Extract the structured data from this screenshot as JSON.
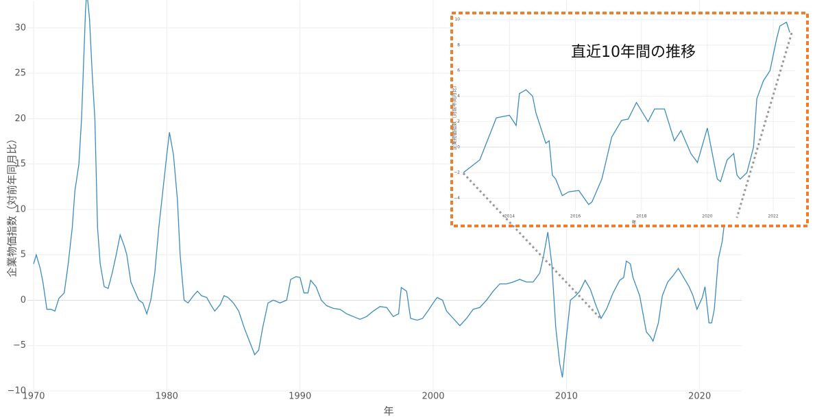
{
  "chart_data": [
    {
      "type": "line",
      "x_label": "年",
      "y_label": "企業物価指数（対前年同月比）",
      "color": "#3b8bbd",
      "grid": true,
      "xlim": [
        1970,
        2023
      ],
      "ylim": [
        -10,
        33
      ],
      "xticks": [
        1970,
        1980,
        1990,
        2000,
        2010,
        2020
      ],
      "yticks": [
        {
          "value": -10,
          "label": "−10"
        },
        {
          "value": -5,
          "label": "−5"
        },
        0,
        5,
        10,
        15,
        20,
        25,
        30
      ],
      "x": [
        1970.0,
        1970.2,
        1970.5,
        1970.7,
        1971.0,
        1971.3,
        1971.6,
        1971.9,
        1972.3,
        1972.6,
        1972.9,
        1973.1,
        1973.4,
        1973.6,
        1973.9,
        1974.0,
        1974.2,
        1974.4,
        1974.6,
        1974.8,
        1975.0,
        1975.3,
        1975.6,
        1975.9,
        1976.2,
        1976.5,
        1976.8,
        1977.0,
        1977.3,
        1977.6,
        1977.9,
        1978.2,
        1978.5,
        1978.8,
        1979.1,
        1979.4,
        1979.7,
        1980.0,
        1980.2,
        1980.5,
        1980.8,
        1981.0,
        1981.3,
        1981.6,
        1982.0,
        1982.3,
        1982.6,
        1983.0,
        1983.3,
        1983.6,
        1984.0,
        1984.3,
        1984.6,
        1985.0,
        1985.4,
        1985.8,
        1986.2,
        1986.6,
        1986.9,
        1987.2,
        1987.6,
        1988.0,
        1988.5,
        1989.0,
        1989.3,
        1989.7,
        1990.0,
        1990.3,
        1990.6,
        1990.8,
        1991.2,
        1991.6,
        1992.0,
        1992.5,
        1993.0,
        1993.5,
        1994.0,
        1994.5,
        1995.0,
        1995.5,
        1996.0,
        1996.5,
        1997.0,
        1997.4,
        1997.6,
        1998.0,
        1998.3,
        1998.8,
        1999.2,
        1999.6,
        2000.0,
        2000.3,
        2000.7,
        2001.0,
        2001.5,
        2002.0,
        2002.5,
        2003.0,
        2003.5,
        2004.0,
        2004.5,
        2005.0,
        2005.5,
        2006.0,
        2006.5,
        2007.0,
        2007.5,
        2008.0,
        2008.3,
        2008.6,
        2008.9,
        2009.2,
        2009.5,
        2009.7,
        2010.0,
        2010.3,
        2010.7,
        2011.0,
        2011.4,
        2011.8,
        2012.2,
        2012.6,
        2013.0,
        2013.5,
        2014.0,
        2014.3,
        2014.5,
        2014.8,
        2015.0,
        2015.5,
        2016.0,
        2016.3,
        2016.5,
        2016.9,
        2017.2,
        2017.6,
        2018.0,
        2018.4,
        2018.8,
        2019.2,
        2019.5,
        2019.8,
        2020.2,
        2020.4,
        2020.7,
        2020.9,
        2021.1,
        2021.4,
        2021.7,
        2021.9,
        2022.2,
        2022.5
      ],
      "values": [
        4.0,
        5.0,
        3.5,
        2.0,
        -1.0,
        -1.0,
        -1.2,
        0.2,
        0.8,
        4,
        8,
        12,
        15,
        20,
        32,
        34,
        31,
        25,
        20,
        8,
        4,
        1.5,
        1.3,
        3,
        5,
        7.2,
        6,
        5,
        2,
        1,
        0,
        -0.3,
        -1.5,
        0,
        3,
        8,
        12,
        16,
        18.5,
        16,
        11,
        5,
        0,
        -0.3,
        0.5,
        1,
        0.5,
        0.3,
        -0.5,
        -1.2,
        -0.5,
        0.5,
        0.3,
        -0.3,
        -1.2,
        -3,
        -4.5,
        -6,
        -5.5,
        -3,
        -0.3,
        0,
        -0.3,
        0,
        2.3,
        2.6,
        2.5,
        0.8,
        0.8,
        2.2,
        1.5,
        0,
        -0.6,
        -0.9,
        -1.0,
        -1.5,
        -1.8,
        -2.1,
        -1.8,
        -1.2,
        -0.7,
        -0.8,
        -1.8,
        -1.5,
        1.4,
        1.0,
        -2.0,
        -2.2,
        -2.0,
        -1.2,
        -0.3,
        0.3,
        0,
        -1.2,
        -2.0,
        -2.8,
        -2.0,
        -1.0,
        -0.8,
        0,
        1.0,
        1.8,
        1.8,
        2.0,
        2.3,
        2.0,
        2.0,
        3.0,
        5,
        7.5,
        4,
        -3,
        -7,
        -8.5,
        -4,
        0,
        0.5,
        1.0,
        2.2,
        1.2,
        -0.5,
        -2.0,
        -1.0,
        0.8,
        2.2,
        2.5,
        4.3,
        4.0,
        2.5,
        0.5,
        -3.5,
        -4.0,
        -4.5,
        -2.5,
        0.5,
        2.0,
        2.7,
        3.5,
        2.5,
        1.5,
        0.5,
        -1.0,
        0.3,
        1.5,
        -2.5,
        -2.5,
        -1,
        4.5,
        6.5,
        9.0,
        9.5,
        9.0
      ]
    },
    {
      "type": "line",
      "title": "直近10年間の推移",
      "x_label": "年",
      "y_label": "企業物価指数（対前年同月比）",
      "color": "#3b8bbd",
      "grid": true,
      "xlim": [
        2012.6,
        2022.6
      ],
      "ylim": [
        -5,
        10.2
      ],
      "xticks": [
        2014,
        2016,
        2018,
        2020,
        2022
      ],
      "yticks": [
        {
          "value": -4,
          "label": "−4"
        },
        {
          "value": -2,
          "label": "−2"
        },
        0,
        2,
        4,
        6,
        8,
        10
      ],
      "x": [
        2012.6,
        2013.1,
        2013.6,
        2014.0,
        2014.2,
        2014.3,
        2014.5,
        2014.7,
        2014.8,
        2015.1,
        2015.2,
        2015.3,
        2015.4,
        2015.6,
        2015.8,
        2016.1,
        2016.4,
        2016.5,
        2016.8,
        2017.1,
        2017.4,
        2017.6,
        2017.85,
        2018.2,
        2018.4,
        2018.7,
        2019.0,
        2019.2,
        2019.5,
        2019.7,
        2020.0,
        2020.3,
        2020.4,
        2020.6,
        2020.8,
        2020.9,
        2021.0,
        2021.2,
        2021.4,
        2021.5,
        2021.7,
        2021.9,
        2022.1,
        2022.2,
        2022.4,
        2022.5
      ],
      "values": [
        -2.0,
        -1.0,
        2.3,
        2.5,
        1.7,
        4.2,
        4.5,
        4.0,
        2.7,
        0.3,
        0.5,
        -2.2,
        -2.5,
        -3.8,
        -3.5,
        -3.4,
        -4.5,
        -4.3,
        -2.5,
        0.8,
        2.1,
        2.2,
        3.5,
        2.0,
        3.0,
        3.0,
        0.5,
        1.3,
        -0.5,
        -1.2,
        1.5,
        -2.5,
        -2.7,
        -1.0,
        -0.5,
        -2.2,
        -2.5,
        -2.0,
        0,
        3.8,
        5.2,
        6,
        8.5,
        9.5,
        9.8,
        9.0
      ]
    }
  ]
}
